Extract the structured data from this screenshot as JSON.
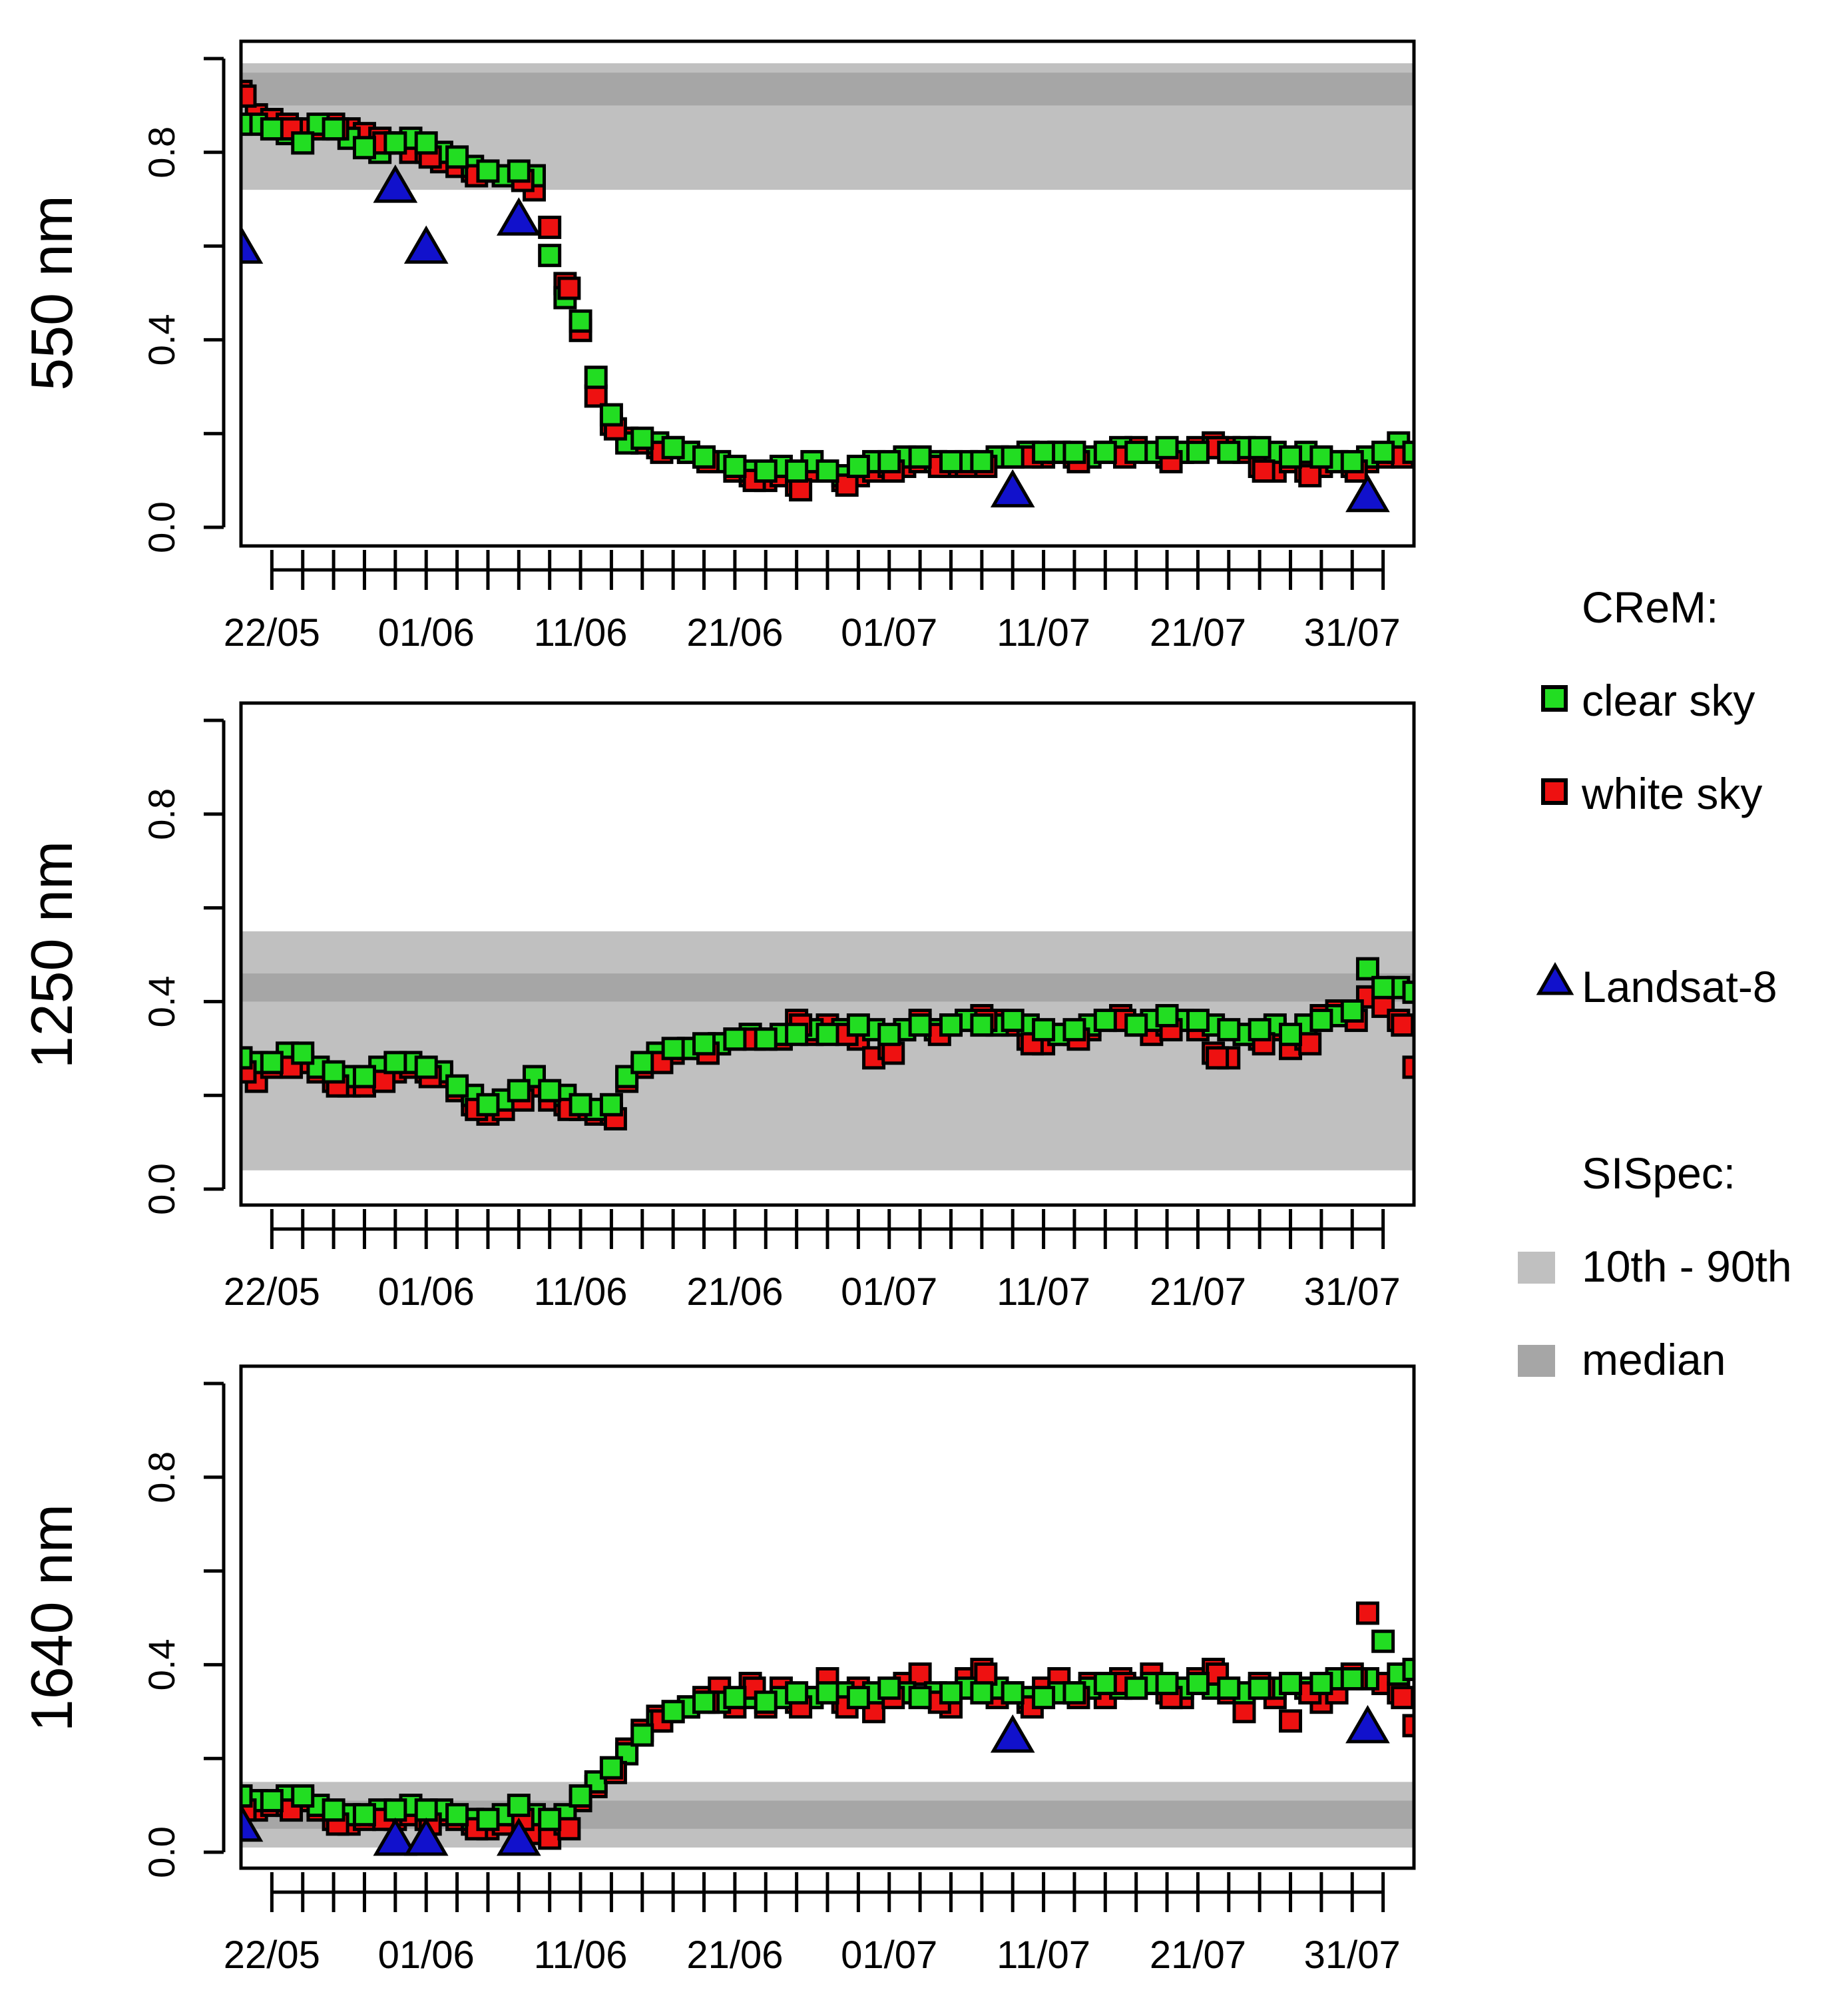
{
  "colors": {
    "clear_sky": "#22dd22",
    "white_sky": "#ee1111",
    "landsat": "#1111cc",
    "band_10_90": "#c0c0c0",
    "band_median": "#a6a6a6",
    "frame": "#000000"
  },
  "legend": {
    "crem_title": "CReM:",
    "clear_sky": "clear sky",
    "white_sky": "white sky",
    "landsat": "Landsat-8",
    "sispec_title": "SISpec:",
    "band_10_90": "10th - 90th",
    "median": "median"
  },
  "chart_data": [
    {
      "type": "scatter",
      "ylabel": "550 nm",
      "ylim": [
        0,
        1.0
      ],
      "yticks": [
        0.0,
        0.2,
        0.4,
        0.6,
        0.8,
        1.0
      ],
      "ytick_labels": [
        "0.0",
        "0.4",
        "0.8"
      ],
      "xlim_day": [
        -1,
        75
      ],
      "xticks_day": [
        1,
        3,
        5,
        7,
        9,
        11,
        13,
        15,
        17,
        19,
        21,
        23,
        25,
        27,
        29,
        31,
        33,
        35,
        37,
        39,
        41,
        43,
        45,
        47,
        49,
        51,
        53,
        55,
        57,
        59,
        61,
        63,
        65,
        67,
        69,
        71,
        73
      ],
      "xtick_labels": [
        {
          "day": 1,
          "label": "22/05"
        },
        {
          "day": 11,
          "label": "01/06"
        },
        {
          "day": 21,
          "label": "11/06"
        },
        {
          "day": 31,
          "label": "21/06"
        },
        {
          "day": 41,
          "label": "01/07"
        },
        {
          "day": 51,
          "label": "11/07"
        },
        {
          "day": 61,
          "label": "21/07"
        },
        {
          "day": 71,
          "label": "31/07"
        }
      ],
      "band_10_90": [
        0.72,
        0.99
      ],
      "band_median": [
        0.9,
        0.97
      ],
      "clear_sky": {
        "x": [
          -1,
          0,
          1,
          2,
          3,
          4,
          5,
          6,
          7,
          8,
          9,
          10,
          11,
          12,
          13,
          14,
          15,
          16,
          17,
          18,
          19,
          20,
          21,
          22,
          23,
          24,
          25,
          26,
          27,
          28,
          29,
          30,
          31,
          32,
          33,
          34,
          35,
          36,
          37,
          38,
          39,
          40,
          41,
          42,
          43,
          44,
          45,
          46,
          47,
          48,
          49,
          50,
          51,
          52,
          53,
          54,
          55,
          56,
          57,
          58,
          59,
          60,
          61,
          62,
          63,
          64,
          65,
          66,
          67,
          68,
          69,
          70,
          71,
          72,
          73,
          74,
          75
        ],
        "y": [
          0.86,
          0.86,
          0.85,
          0.84,
          0.82,
          0.86,
          0.85,
          0.83,
          0.81,
          0.8,
          0.82,
          0.83,
          0.82,
          0.8,
          0.79,
          0.77,
          0.76,
          0.75,
          0.76,
          0.75,
          0.58,
          0.49,
          0.44,
          0.32,
          0.24,
          0.18,
          0.19,
          0.18,
          0.17,
          0.16,
          0.15,
          0.14,
          0.13,
          0.12,
          0.12,
          0.13,
          0.12,
          0.14,
          0.12,
          0.11,
          0.13,
          0.14,
          0.14,
          0.15,
          0.15,
          0.14,
          0.14,
          0.14,
          0.14,
          0.15,
          0.15,
          0.16,
          0.16,
          0.16,
          0.16,
          0.15,
          0.16,
          0.17,
          0.16,
          0.16,
          0.17,
          0.16,
          0.16,
          0.17,
          0.16,
          0.17,
          0.17,
          0.16,
          0.15,
          0.16,
          0.15,
          0.14,
          0.14,
          0.15,
          0.16,
          0.18,
          0.16
        ]
      },
      "white_sky": {
        "x": [
          -1,
          0,
          1,
          2,
          3,
          4,
          5,
          6,
          7,
          8,
          9,
          10,
          11,
          12,
          13,
          14,
          15,
          16,
          17,
          18,
          19,
          20,
          21,
          22,
          23,
          24,
          25,
          26,
          27,
          28,
          29,
          30,
          31,
          32,
          33,
          34,
          35,
          36,
          37,
          38,
          39,
          40,
          41,
          42,
          43,
          44,
          45,
          46,
          47,
          48,
          49,
          50,
          51,
          52,
          53,
          54,
          55,
          56,
          57,
          58,
          59,
          60,
          61,
          62,
          63,
          64,
          65,
          66,
          67,
          68,
          69,
          70,
          71,
          72,
          73,
          74
        ],
        "y": [
          0.93,
          0.88,
          0.87,
          0.86,
          0.85,
          0.85,
          0.86,
          0.85,
          0.84,
          0.83,
          0.82,
          0.8,
          0.8,
          0.78,
          0.77,
          0.76,
          0.76,
          0.75,
          0.75,
          0.72,
          0.64,
          0.52,
          0.42,
          0.28,
          0.22,
          0.19,
          0.18,
          0.17,
          0.17,
          0.16,
          0.15,
          0.14,
          0.12,
          0.11,
          0.1,
          0.11,
          0.09,
          0.12,
          0.12,
          0.1,
          0.11,
          0.12,
          0.13,
          0.13,
          0.14,
          0.14,
          0.13,
          0.13,
          0.14,
          0.15,
          0.15,
          0.16,
          0.15,
          0.16,
          0.15,
          0.15,
          0.16,
          0.16,
          0.17,
          0.16,
          0.15,
          0.16,
          0.17,
          0.18,
          0.17,
          0.16,
          0.13,
          0.12,
          0.14,
          0.12,
          0.13,
          0.14,
          0.13,
          0.14,
          0.15,
          0.16
        ]
      },
      "landsat": {
        "x": [
          -1,
          9,
          11,
          17,
          49,
          72
        ],
        "y": [
          0.6,
          0.73,
          0.6,
          0.66,
          0.08,
          0.07
        ]
      }
    },
    {
      "type": "scatter",
      "ylabel": "1250 nm",
      "ylim": [
        0,
        1.0
      ],
      "yticks": [
        0.0,
        0.2,
        0.4,
        0.6,
        0.8,
        1.0
      ],
      "ytick_labels": [
        "0.0",
        "0.4",
        "0.8"
      ],
      "xlim_day": [
        -1,
        75
      ],
      "xticks_day": [
        1,
        3,
        5,
        7,
        9,
        11,
        13,
        15,
        17,
        19,
        21,
        23,
        25,
        27,
        29,
        31,
        33,
        35,
        37,
        39,
        41,
        43,
        45,
        47,
        49,
        51,
        53,
        55,
        57,
        59,
        61,
        63,
        65,
        67,
        69,
        71,
        73
      ],
      "xtick_labels": [
        {
          "day": 1,
          "label": "22/05"
        },
        {
          "day": 11,
          "label": "01/06"
        },
        {
          "day": 21,
          "label": "11/06"
        },
        {
          "day": 31,
          "label": "21/06"
        },
        {
          "day": 41,
          "label": "01/07"
        },
        {
          "day": 51,
          "label": "11/07"
        },
        {
          "day": 61,
          "label": "21/07"
        },
        {
          "day": 71,
          "label": "31/07"
        }
      ],
      "band_10_90": [
        0.04,
        0.55
      ],
      "band_median": [
        0.4,
        0.46
      ],
      "clear_sky": {
        "x": [
          -1,
          0,
          1,
          2,
          3,
          4,
          5,
          6,
          7,
          8,
          9,
          10,
          11,
          12,
          13,
          14,
          15,
          16,
          17,
          18,
          19,
          20,
          21,
          22,
          23,
          24,
          25,
          26,
          27,
          28,
          29,
          30,
          31,
          32,
          33,
          34,
          35,
          36,
          37,
          38,
          39,
          40,
          41,
          42,
          43,
          44,
          45,
          46,
          47,
          48,
          49,
          50,
          51,
          52,
          53,
          54,
          55,
          56,
          57,
          58,
          59,
          60,
          61,
          62,
          63,
          64,
          65,
          66,
          67,
          68,
          69,
          70,
          71,
          72,
          73,
          74,
          75
        ],
        "y": [
          0.28,
          0.27,
          0.27,
          0.29,
          0.29,
          0.26,
          0.25,
          0.24,
          0.24,
          0.26,
          0.27,
          0.27,
          0.26,
          0.25,
          0.22,
          0.2,
          0.18,
          0.19,
          0.21,
          0.24,
          0.21,
          0.2,
          0.18,
          0.17,
          0.18,
          0.24,
          0.27,
          0.29,
          0.3,
          0.3,
          0.31,
          0.31,
          0.32,
          0.33,
          0.32,
          0.33,
          0.33,
          0.34,
          0.33,
          0.34,
          0.35,
          0.34,
          0.33,
          0.34,
          0.35,
          0.34,
          0.35,
          0.36,
          0.35,
          0.35,
          0.36,
          0.35,
          0.34,
          0.33,
          0.34,
          0.35,
          0.36,
          0.36,
          0.35,
          0.36,
          0.37,
          0.36,
          0.36,
          0.35,
          0.34,
          0.33,
          0.34,
          0.35,
          0.33,
          0.35,
          0.36,
          0.37,
          0.38,
          0.47,
          0.43,
          0.43,
          0.42
        ]
      },
      "white_sky": {
        "x": [
          -1,
          0,
          1,
          2,
          3,
          4,
          5,
          6,
          7,
          8,
          9,
          10,
          11,
          12,
          13,
          14,
          15,
          16,
          17,
          18,
          19,
          20,
          21,
          22,
          23,
          24,
          25,
          26,
          27,
          28,
          29,
          30,
          31,
          32,
          33,
          34,
          35,
          36,
          37,
          38,
          39,
          40,
          41,
          42,
          43,
          44,
          45,
          46,
          47,
          48,
          49,
          50,
          51,
          52,
          53,
          54,
          55,
          56,
          57,
          58,
          59,
          60,
          61,
          62,
          63,
          64,
          65,
          66,
          67,
          68,
          69,
          70,
          71,
          72,
          73,
          74,
          75
        ],
        "y": [
          0.26,
          0.23,
          0.26,
          0.27,
          0.27,
          0.25,
          0.23,
          0.22,
          0.22,
          0.24,
          0.25,
          0.26,
          0.25,
          0.24,
          0.21,
          0.18,
          0.16,
          0.17,
          0.2,
          0.22,
          0.19,
          0.18,
          0.17,
          0.16,
          0.16,
          0.23,
          0.26,
          0.28,
          0.29,
          0.3,
          0.3,
          0.31,
          0.32,
          0.33,
          0.32,
          0.32,
          0.36,
          0.33,
          0.35,
          0.34,
          0.32,
          0.28,
          0.3,
          0.34,
          0.36,
          0.34,
          0.35,
          0.36,
          0.37,
          0.36,
          0.35,
          0.32,
          0.31,
          0.33,
          0.33,
          0.34,
          0.36,
          0.37,
          0.35,
          0.33,
          0.35,
          0.36,
          0.34,
          0.29,
          0.28,
          0.33,
          0.32,
          0.34,
          0.3,
          0.32,
          0.37,
          0.38,
          0.37,
          0.41,
          0.39,
          0.36,
          0.26
        ]
      },
      "landsat": {
        "x": [],
        "y": []
      }
    },
    {
      "type": "scatter",
      "ylabel": "1640 nm",
      "ylim": [
        0,
        1.0
      ],
      "yticks": [
        0.0,
        0.2,
        0.4,
        0.6,
        0.8,
        1.0
      ],
      "ytick_labels": [
        "0.0",
        "0.4",
        "0.8"
      ],
      "xlim_day": [
        -1,
        75
      ],
      "xticks_day": [
        1,
        3,
        5,
        7,
        9,
        11,
        13,
        15,
        17,
        19,
        21,
        23,
        25,
        27,
        29,
        31,
        33,
        35,
        37,
        39,
        41,
        43,
        45,
        47,
        49,
        51,
        53,
        55,
        57,
        59,
        61,
        63,
        65,
        67,
        69,
        71,
        73
      ],
      "xtick_labels": [
        {
          "day": 1,
          "label": "22/05"
        },
        {
          "day": 11,
          "label": "01/06"
        },
        {
          "day": 21,
          "label": "11/06"
        },
        {
          "day": 31,
          "label": "21/06"
        },
        {
          "day": 41,
          "label": "01/07"
        },
        {
          "day": 51,
          "label": "11/07"
        },
        {
          "day": 61,
          "label": "21/07"
        },
        {
          "day": 71,
          "label": "31/07"
        }
      ],
      "band_10_90": [
        0.01,
        0.15
      ],
      "band_median": [
        0.05,
        0.11
      ],
      "clear_sky": {
        "x": [
          -1,
          0,
          1,
          2,
          3,
          4,
          5,
          6,
          7,
          8,
          9,
          10,
          11,
          12,
          13,
          14,
          15,
          16,
          17,
          18,
          19,
          20,
          21,
          22,
          23,
          24,
          25,
          26,
          27,
          28,
          29,
          30,
          31,
          32,
          33,
          34,
          35,
          36,
          37,
          38,
          39,
          40,
          41,
          42,
          43,
          44,
          45,
          46,
          47,
          48,
          49,
          50,
          51,
          52,
          53,
          54,
          55,
          56,
          57,
          58,
          59,
          60,
          61,
          62,
          63,
          64,
          65,
          66,
          67,
          68,
          69,
          70,
          71,
          72,
          73,
          74,
          75
        ],
        "y": [
          0.12,
          0.11,
          0.11,
          0.12,
          0.12,
          0.1,
          0.09,
          0.08,
          0.08,
          0.09,
          0.09,
          0.1,
          0.09,
          0.09,
          0.08,
          0.07,
          0.07,
          0.08,
          0.1,
          0.08,
          0.07,
          0.08,
          0.12,
          0.15,
          0.18,
          0.21,
          0.25,
          0.28,
          0.3,
          0.31,
          0.32,
          0.32,
          0.33,
          0.33,
          0.32,
          0.33,
          0.34,
          0.33,
          0.34,
          0.34,
          0.33,
          0.34,
          0.35,
          0.34,
          0.33,
          0.34,
          0.34,
          0.35,
          0.34,
          0.35,
          0.34,
          0.33,
          0.33,
          0.34,
          0.34,
          0.35,
          0.36,
          0.35,
          0.35,
          0.36,
          0.36,
          0.35,
          0.36,
          0.35,
          0.35,
          0.34,
          0.35,
          0.35,
          0.36,
          0.35,
          0.36,
          0.37,
          0.37,
          0.37,
          0.45,
          0.38,
          0.39
        ]
      },
      "white_sky": {
        "x": [
          -1,
          0,
          1,
          2,
          3,
          4,
          5,
          6,
          7,
          8,
          9,
          10,
          11,
          12,
          13,
          14,
          15,
          16,
          17,
          18,
          19,
          20,
          21,
          22,
          23,
          24,
          25,
          26,
          27,
          28,
          29,
          30,
          31,
          32,
          33,
          34,
          35,
          36,
          37,
          38,
          39,
          40,
          41,
          42,
          43,
          44,
          45,
          46,
          47,
          48,
          49,
          50,
          51,
          52,
          53,
          54,
          55,
          56,
          57,
          58,
          59,
          60,
          61,
          62,
          63,
          64,
          65,
          66,
          67,
          68,
          69,
          70,
          71,
          72,
          73,
          74,
          75
        ],
        "y": [
          0.1,
          0.09,
          0.1,
          0.1,
          0.11,
          0.09,
          0.07,
          0.06,
          0.07,
          0.08,
          0.07,
          0.08,
          0.07,
          0.08,
          0.07,
          0.06,
          0.05,
          0.06,
          0.08,
          0.04,
          0.03,
          0.06,
          0.11,
          0.14,
          0.18,
          0.22,
          0.26,
          0.29,
          0.3,
          0.31,
          0.33,
          0.35,
          0.31,
          0.36,
          0.31,
          0.35,
          0.32,
          0.33,
          0.37,
          0.32,
          0.35,
          0.3,
          0.34,
          0.36,
          0.38,
          0.33,
          0.31,
          0.37,
          0.39,
          0.33,
          0.34,
          0.32,
          0.35,
          0.37,
          0.34,
          0.36,
          0.33,
          0.37,
          0.35,
          0.38,
          0.34,
          0.33,
          0.37,
          0.39,
          0.34,
          0.3,
          0.36,
          0.33,
          0.28,
          0.35,
          0.32,
          0.34,
          0.38,
          0.51,
          0.36,
          0.34,
          0.27
        ]
      },
      "landsat": {
        "x": [
          -1,
          9,
          11,
          17,
          49,
          72
        ],
        "y": [
          0.06,
          0.03,
          0.03,
          0.03,
          0.25,
          0.27
        ]
      }
    }
  ]
}
